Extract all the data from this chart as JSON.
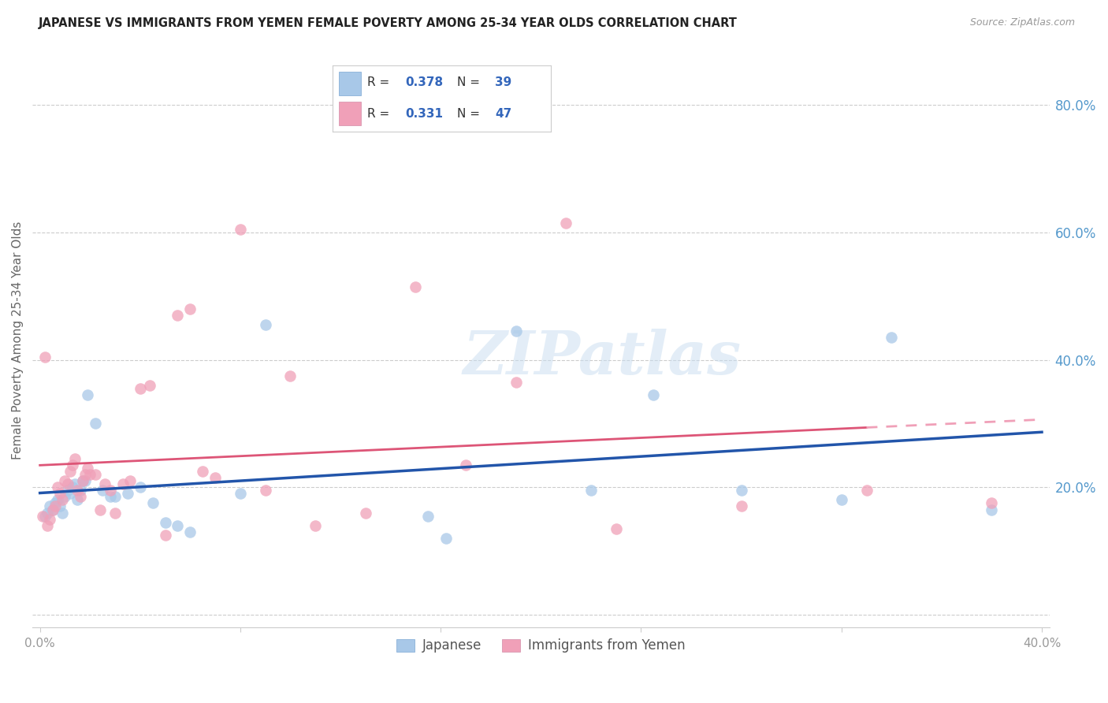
{
  "title": "JAPANESE VS IMMIGRANTS FROM YEMEN FEMALE POVERTY AMONG 25-34 YEAR OLDS CORRELATION CHART",
  "source": "Source: ZipAtlas.com",
  "ylabel": "Female Poverty Among 25-34 Year Olds",
  "xlim": [
    0.0,
    0.4
  ],
  "ylim": [
    -0.02,
    0.88
  ],
  "xticks": [
    0.0,
    0.08,
    0.16,
    0.24,
    0.32,
    0.4
  ],
  "yticks": [
    0.0,
    0.2,
    0.4,
    0.6,
    0.8
  ],
  "xtick_labels": [
    "0.0%",
    "",
    "",
    "",
    "",
    "40.0%"
  ],
  "ytick_labels": [
    "",
    "20.0%",
    "40.0%",
    "60.0%",
    "80.0%"
  ],
  "japanese_color": "#a8c8e8",
  "yemen_color": "#f0a0b8",
  "japanese_line_color": "#2255aa",
  "yemen_line_color": "#dd5577",
  "yemen_line_dashed_color": "#f0a0b8",
  "R_japanese": 0.378,
  "N_japanese": 39,
  "R_yemen": 0.331,
  "N_yemen": 47,
  "legend_label_japanese": "Japanese",
  "legend_label_yemen": "Immigrants from Yemen",
  "watermark": "ZIPatlas",
  "japanese_x": [
    0.002,
    0.003,
    0.004,
    0.005,
    0.006,
    0.007,
    0.008,
    0.009,
    0.01,
    0.011,
    0.012,
    0.013,
    0.014,
    0.015,
    0.016,
    0.017,
    0.018,
    0.019,
    0.022,
    0.025,
    0.028,
    0.03,
    0.035,
    0.04,
    0.045,
    0.05,
    0.055,
    0.06,
    0.08,
    0.09,
    0.155,
    0.162,
    0.19,
    0.22,
    0.245,
    0.28,
    0.32,
    0.34,
    0.38
  ],
  "japanese_y": [
    0.155,
    0.16,
    0.17,
    0.165,
    0.175,
    0.18,
    0.17,
    0.16,
    0.185,
    0.195,
    0.19,
    0.2,
    0.205,
    0.18,
    0.195,
    0.21,
    0.21,
    0.345,
    0.3,
    0.195,
    0.185,
    0.185,
    0.19,
    0.2,
    0.175,
    0.145,
    0.14,
    0.13,
    0.19,
    0.455,
    0.155,
    0.12,
    0.445,
    0.195,
    0.345,
    0.195,
    0.18,
    0.435,
    0.165
  ],
  "yemen_x": [
    0.001,
    0.002,
    0.003,
    0.004,
    0.005,
    0.006,
    0.007,
    0.008,
    0.009,
    0.01,
    0.011,
    0.012,
    0.013,
    0.014,
    0.015,
    0.016,
    0.017,
    0.018,
    0.019,
    0.02,
    0.022,
    0.024,
    0.026,
    0.028,
    0.03,
    0.033,
    0.036,
    0.04,
    0.044,
    0.05,
    0.055,
    0.06,
    0.065,
    0.07,
    0.08,
    0.09,
    0.1,
    0.11,
    0.13,
    0.15,
    0.17,
    0.19,
    0.21,
    0.23,
    0.28,
    0.33,
    0.38
  ],
  "yemen_y": [
    0.155,
    0.405,
    0.14,
    0.15,
    0.165,
    0.17,
    0.2,
    0.19,
    0.18,
    0.21,
    0.205,
    0.225,
    0.235,
    0.245,
    0.195,
    0.185,
    0.21,
    0.22,
    0.23,
    0.22,
    0.22,
    0.165,
    0.205,
    0.195,
    0.16,
    0.205,
    0.21,
    0.355,
    0.36,
    0.125,
    0.47,
    0.48,
    0.225,
    0.215,
    0.605,
    0.195,
    0.375,
    0.14,
    0.16,
    0.515,
    0.235,
    0.365,
    0.615,
    0.135,
    0.17,
    0.195,
    0.175
  ]
}
